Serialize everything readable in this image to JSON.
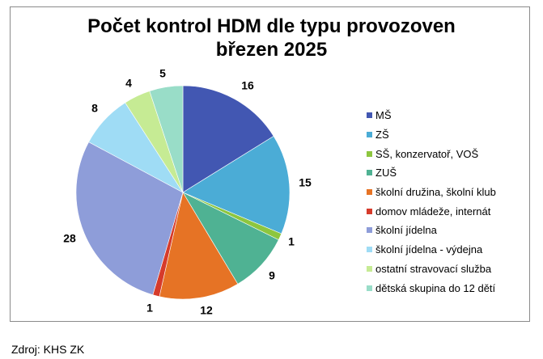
{
  "chart_data": {
    "type": "pie",
    "title_line1": "Počet kontrol HDM dle typu provozoven",
    "title_line2": "březen 2025",
    "categories": [
      "MŠ",
      "ZŠ",
      "SŠ, konzervatoř, VOŠ",
      "ZUŠ",
      "školní družina, školní klub",
      "domov mládeže, internát",
      "školní jídelna",
      "školní jídelna - výdejna",
      "ostatní stravovací služba",
      "dětská skupina do 12 dětí"
    ],
    "values": [
      16,
      15,
      1,
      9,
      12,
      1,
      28,
      8,
      4,
      5
    ],
    "colors": [
      "#4257b2",
      "#4bacd6",
      "#8dc63f",
      "#4fb293",
      "#e67325",
      "#d63b2b",
      "#8e9dd9",
      "#9fdcf5",
      "#c6eb94",
      "#99ddc8"
    ],
    "legend_position": "right"
  },
  "source": "Zdroj: KHS ZK"
}
